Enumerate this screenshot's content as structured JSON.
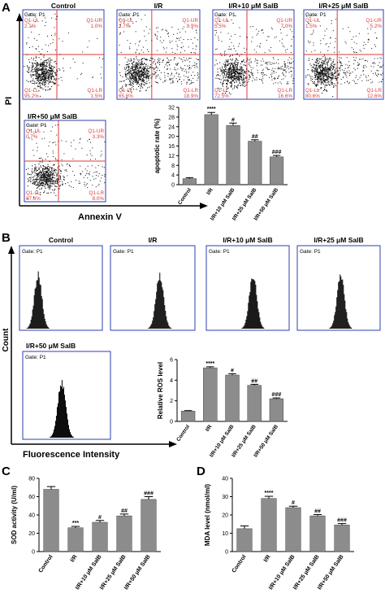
{
  "panel_letters": [
    "A",
    "B",
    "C",
    "D"
  ],
  "panel_a": {
    "y_axis_label": "PI",
    "x_axis_label": "Annexin V",
    "gate_label": "Gate: P1",
    "plots": [
      {
        "title": "Control",
        "q_ul": "Q1-UL",
        "q_ur": "Q1-UR",
        "q_ll": "Q1-LL",
        "q_lr": "Q1-LR",
        "ul": "2.1%",
        "ur": "1.0%",
        "ll": "95.2%",
        "lr": "1.5%"
      },
      {
        "title": "I/R",
        "q_ul": "Q1-UL",
        "q_ur": "Q1-UR",
        "q_ll": "Q1-LL",
        "q_lr": "Q1-LR",
        "ul": "3.7%",
        "ur": "9.9%",
        "ll": "65.6%",
        "lr": "18.9%"
      },
      {
        "title": "I/R+10 μM SalB",
        "q_ul": "Q1-UL",
        "q_ur": "Q1-UR",
        "q_ll": "Q1-LL",
        "q_lr": "Q1-LR",
        "ul": "5.5%",
        "ur": "7.0%",
        "ll": "72.5%",
        "lr": "16.6%"
      },
      {
        "title": "I/R+25 μM SalB",
        "q_ul": "Q1-UL",
        "q_ur": "Q1-UR",
        "q_ll": "Q1-LL",
        "q_lr": "Q1-LR",
        "ul": "1.5%",
        "ur": "5.2%",
        "ll": "80.6%",
        "lr": "12.6%"
      },
      {
        "title": "I/R+50 μM SalB",
        "q_ul": "Q1-UL",
        "q_ur": "Q1-UR",
        "q_ll": "Q1-LL",
        "q_lr": "Q1-LR",
        "ul": "0.7%",
        "ur": "3.3%",
        "ll": "87.6%",
        "lr": "8.0%"
      }
    ]
  },
  "panel_b": {
    "y_axis_label": "Count",
    "x_axis_label": "Fluorescence Intensity",
    "gate_label": "Gate: P1",
    "plots": [
      {
        "title": "Control",
        "peak": 0.22
      },
      {
        "title": "I/R",
        "peak": 0.58
      },
      {
        "title": "I/R+10 μM SalB",
        "peak": 0.56
      },
      {
        "title": "I/R+25 μM SalB",
        "peak": 0.52
      },
      {
        "title": "I/R+50 μM SalB",
        "peak": 0.44
      }
    ]
  },
  "chart_data": [
    {
      "type": "bar",
      "panel": "A",
      "categories": [
        "Control",
        "I/R",
        "I/R+10 μM SalB",
        "I/R+25 μM SalB",
        "I/R+50 μM SalB"
      ],
      "values": [
        2.5,
        29.0,
        24.5,
        18.0,
        11.5
      ],
      "errors": [
        0.4,
        0.9,
        1.0,
        0.6,
        0.6
      ],
      "annotations": [
        "",
        "****",
        "#",
        "##",
        "###"
      ],
      "ylabel": "apoptotic rate (%)",
      "xlabel": "",
      "ylim": [
        0,
        32
      ],
      "yticks": [
        0,
        4,
        8,
        12,
        16,
        20,
        24,
        28,
        32
      ]
    },
    {
      "type": "bar",
      "panel": "B",
      "categories": [
        "Control",
        "I/R",
        "I/R+10 μM SalB",
        "I/R+25 μM SalB",
        "I/R+50 μM SalB"
      ],
      "values": [
        1.0,
        5.2,
        4.5,
        3.5,
        2.2
      ],
      "errors": [
        0.05,
        0.1,
        0.12,
        0.1,
        0.08
      ],
      "annotations": [
        "",
        "****",
        "#",
        "##",
        "###"
      ],
      "ylabel": "Relative ROS level",
      "xlabel": "",
      "ylim": [
        0,
        6
      ],
      "yticks": [
        0,
        2,
        4,
        6
      ]
    },
    {
      "type": "bar",
      "panel": "C",
      "categories": [
        "Control",
        "I/R",
        "I/R+10 μM SalB",
        "I/R+25 μM SalB",
        "I/R+50 μM SalB"
      ],
      "values": [
        68,
        26,
        32,
        39,
        57
      ],
      "errors": [
        3,
        1.5,
        2,
        2,
        3
      ],
      "annotations": [
        "",
        "***",
        "#",
        "##",
        "###"
      ],
      "ylabel": "SOD activity (U/ml)",
      "xlabel": "",
      "ylim": [
        0,
        80
      ],
      "yticks": [
        0,
        20,
        40,
        60,
        80
      ]
    },
    {
      "type": "bar",
      "panel": "D",
      "categories": [
        "Control",
        "I/R",
        "I/R+10 μM SalB",
        "I/R+25 μM SalB",
        "I/R+50 μM SalB"
      ],
      "values": [
        12.5,
        29,
        24,
        19.5,
        14.5
      ],
      "errors": [
        1.5,
        1.2,
        0.8,
        0.7,
        0.8
      ],
      "annotations": [
        "",
        "****",
        "#",
        "##",
        "###"
      ],
      "ylabel": "MDA level (nmol/ml)",
      "xlabel": "",
      "ylim": [
        0,
        40
      ],
      "yticks": [
        0,
        10,
        20,
        30,
        40
      ]
    }
  ],
  "colors": {
    "bar": "#8c8c8c",
    "frame_blue": "#2b3fb0",
    "gate_red": "#e23a3a",
    "dots": "#111111",
    "histogram": "#000000"
  }
}
